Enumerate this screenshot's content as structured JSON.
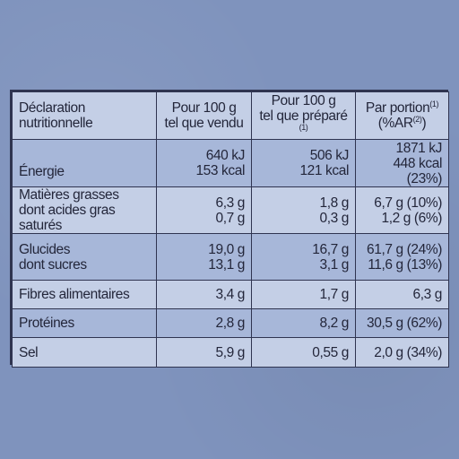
{
  "header": {
    "col1_line1": "Déclaration",
    "col1_line2": "nutritionnelle",
    "col2_line1": "Pour 100 g",
    "col2_line2": "tel que vendu",
    "col3_line1": "Pour 100 g",
    "col3_line2": "tel que préparé",
    "col3_sup": "(1)",
    "col4_line1": "Par portion",
    "col4_sup1": "(1)",
    "col4_line2_a": "(%AR",
    "col4_sup2": "(2)",
    "col4_line2_b": ")"
  },
  "rows": {
    "energie": {
      "label": "Énergie",
      "sold_kj": "640 kJ",
      "sold_kcal": "153 kcal",
      "prep_kj": "506 kJ",
      "prep_kcal": "121 kcal",
      "portion_kj": "1871 kJ",
      "portion_kcal": "448 kcal (23%)"
    },
    "matieres": {
      "label1": "Matières grasses",
      "label2": "dont acides gras saturés",
      "sold1": "6,3 g",
      "sold2": "0,7 g",
      "prep1": "1,8 g",
      "prep2": "0,3 g",
      "portion1": "6,7 g (10%)",
      "portion2": "1,2 g (6%)"
    },
    "glucides": {
      "label1": "Glucides",
      "label2": "dont sucres",
      "sold1": "19,0 g",
      "sold2": "13,1 g",
      "prep1": "16,7 g",
      "prep2": "3,1 g",
      "portion1": "61,7 g (24%)",
      "portion2": "11,6 g (13%)"
    },
    "fibres": {
      "label": "Fibres alimentaires",
      "sold": "3,4 g",
      "prep": "1,7 g",
      "portion": "6,3 g"
    },
    "proteines": {
      "label": "Protéines",
      "sold": "2,8 g",
      "prep": "8,2 g",
      "portion": "30,5 g (62%)"
    },
    "sel": {
      "label": "Sel",
      "sold": "5,9 g",
      "prep": "0,55 g",
      "portion": "2,0 g (34%)"
    }
  }
}
